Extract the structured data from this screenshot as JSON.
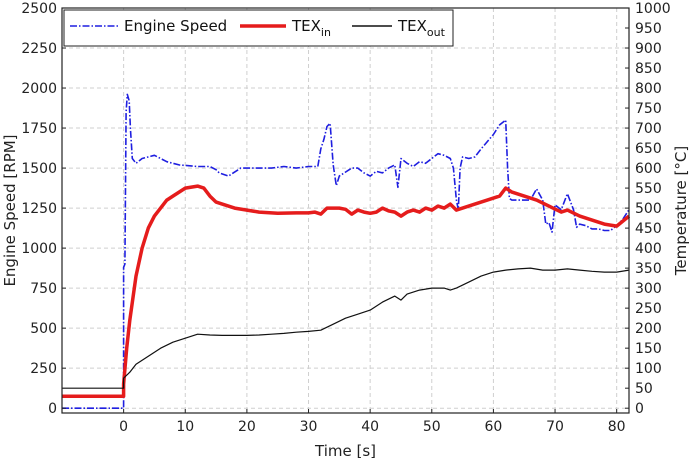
{
  "chart_data": {
    "type": "line",
    "xlabel": "Time [s]",
    "ylabel_left": "Engine Speed [RPM]",
    "ylabel_right": "Temperature [°C]",
    "xlim": [
      -10,
      82
    ],
    "ylim_left": [
      -30,
      2500
    ],
    "ylim_right": [
      -12,
      1000
    ],
    "x_ticks": [
      "0",
      "10",
      "20",
      "30",
      "40",
      "50",
      "60",
      "70",
      "80"
    ],
    "y_left_ticks": [
      "0",
      "250",
      "500",
      "750",
      "1000",
      "1250",
      "1500",
      "1750",
      "2000",
      "2250",
      "2500"
    ],
    "y_right_ticks": [
      "0",
      "50",
      "100",
      "150",
      "200",
      "250",
      "300",
      "350",
      "400",
      "450",
      "500",
      "550",
      "600",
      "650",
      "700",
      "750",
      "800",
      "850",
      "900",
      "950",
      "1000"
    ],
    "grid": true,
    "legend_position": "top-left",
    "legend": [
      {
        "base": "Engine Speed",
        "sub": ""
      },
      {
        "base": "TEX",
        "sub": "in"
      },
      {
        "base": "TEX",
        "sub": "out"
      }
    ],
    "series": [
      {
        "key": "engine_speed",
        "axis": "left",
        "color": "#1f1fe0",
        "style": "dashdot",
        "points": [
          [
            -10,
            0
          ],
          [
            0,
            0
          ],
          [
            0,
            880
          ],
          [
            0.2,
            900
          ],
          [
            0.4,
            1850
          ],
          [
            0.6,
            1960
          ],
          [
            0.9,
            1920
          ],
          [
            1.1,
            1750
          ],
          [
            1.4,
            1560
          ],
          [
            2,
            1530
          ],
          [
            3,
            1560
          ],
          [
            5,
            1580
          ],
          [
            7,
            1540
          ],
          [
            9,
            1520
          ],
          [
            12,
            1510
          ],
          [
            14,
            1510
          ],
          [
            15,
            1490
          ],
          [
            15.5,
            1470
          ],
          [
            17,
            1450
          ],
          [
            19,
            1500
          ],
          [
            22,
            1500
          ],
          [
            24,
            1500
          ],
          [
            26,
            1510
          ],
          [
            28,
            1500
          ],
          [
            30,
            1510
          ],
          [
            31.5,
            1510
          ],
          [
            32,
            1620
          ],
          [
            32.5,
            1680
          ],
          [
            33,
            1760
          ],
          [
            33.5,
            1780
          ],
          [
            34,
            1520
          ],
          [
            34.5,
            1390
          ],
          [
            35,
            1450
          ],
          [
            37,
            1500
          ],
          [
            38,
            1500
          ],
          [
            39,
            1470
          ],
          [
            40,
            1450
          ],
          [
            41,
            1480
          ],
          [
            42,
            1470
          ],
          [
            43,
            1500
          ],
          [
            44,
            1520
          ],
          [
            44.5,
            1380
          ],
          [
            45,
            1560
          ],
          [
            46,
            1530
          ],
          [
            47,
            1510
          ],
          [
            48,
            1540
          ],
          [
            49,
            1530
          ],
          [
            50,
            1560
          ],
          [
            51,
            1590
          ],
          [
            52,
            1580
          ],
          [
            53,
            1560
          ],
          [
            53.5,
            1500
          ],
          [
            54,
            1300
          ],
          [
            54.3,
            1240
          ],
          [
            54.6,
            1500
          ],
          [
            55,
            1570
          ],
          [
            56,
            1560
          ],
          [
            57,
            1570
          ],
          [
            58,
            1620
          ],
          [
            60,
            1710
          ],
          [
            61,
            1770
          ],
          [
            62,
            1800
          ],
          [
            62.3,
            1500
          ],
          [
            62.6,
            1310
          ],
          [
            63,
            1300
          ],
          [
            65,
            1300
          ],
          [
            66,
            1300
          ],
          [
            67,
            1370
          ],
          [
            68,
            1300
          ],
          [
            68.5,
            1150
          ],
          [
            69,
            1160
          ],
          [
            69.5,
            1100
          ],
          [
            70,
            1270
          ],
          [
            71,
            1240
          ],
          [
            72,
            1340
          ],
          [
            73,
            1240
          ],
          [
            73.5,
            1130
          ],
          [
            74,
            1150
          ],
          [
            75,
            1140
          ],
          [
            76,
            1120
          ],
          [
            77,
            1120
          ],
          [
            78,
            1110
          ],
          [
            79,
            1110
          ],
          [
            80,
            1140
          ],
          [
            81,
            1180
          ],
          [
            82,
            1240
          ]
        ]
      },
      {
        "key": "tex_in",
        "axis": "right",
        "color": "#e51c1c",
        "style": "solid",
        "points": [
          [
            -10,
            30
          ],
          [
            0,
            30
          ],
          [
            0,
            60
          ],
          [
            0.5,
            150
          ],
          [
            1,
            220
          ],
          [
            2,
            330
          ],
          [
            3,
            400
          ],
          [
            4,
            450
          ],
          [
            5,
            480
          ],
          [
            6,
            500
          ],
          [
            7,
            520
          ],
          [
            8,
            530
          ],
          [
            9,
            540
          ],
          [
            10,
            550
          ],
          [
            12,
            555
          ],
          [
            13,
            550
          ],
          [
            14,
            530
          ],
          [
            15,
            515
          ],
          [
            16,
            510
          ],
          [
            18,
            500
          ],
          [
            20,
            495
          ],
          [
            22,
            490
          ],
          [
            25,
            487
          ],
          [
            28,
            488
          ],
          [
            30,
            488
          ],
          [
            31,
            490
          ],
          [
            32,
            485
          ],
          [
            33,
            500
          ],
          [
            35,
            500
          ],
          [
            36,
            497
          ],
          [
            37,
            485
          ],
          [
            38,
            495
          ],
          [
            39,
            490
          ],
          [
            40,
            487
          ],
          [
            41,
            490
          ],
          [
            42,
            500
          ],
          [
            43,
            493
          ],
          [
            44,
            490
          ],
          [
            45,
            480
          ],
          [
            46,
            490
          ],
          [
            47,
            495
          ],
          [
            48,
            490
          ],
          [
            49,
            500
          ],
          [
            50,
            495
          ],
          [
            51,
            505
          ],
          [
            52,
            500
          ],
          [
            53,
            510
          ],
          [
            54,
            495
          ],
          [
            55,
            500
          ],
          [
            57,
            510
          ],
          [
            59,
            520
          ],
          [
            61,
            530
          ],
          [
            62,
            550
          ],
          [
            63,
            540
          ],
          [
            65,
            530
          ],
          [
            67,
            520
          ],
          [
            69,
            505
          ],
          [
            71,
            490
          ],
          [
            72,
            495
          ],
          [
            74,
            480
          ],
          [
            76,
            470
          ],
          [
            78,
            460
          ],
          [
            80,
            455
          ],
          [
            82,
            480
          ]
        ]
      },
      {
        "key": "tex_out",
        "axis": "right",
        "color": "#111111",
        "style": "solid",
        "points": [
          [
            -10,
            50
          ],
          [
            0,
            50
          ],
          [
            0,
            75
          ],
          [
            1,
            90
          ],
          [
            2,
            110
          ],
          [
            4,
            130
          ],
          [
            6,
            150
          ],
          [
            8,
            165
          ],
          [
            10,
            175
          ],
          [
            12,
            185
          ],
          [
            14,
            183
          ],
          [
            16,
            182
          ],
          [
            18,
            182
          ],
          [
            20,
            182
          ],
          [
            22,
            183
          ],
          [
            24,
            185
          ],
          [
            26,
            187
          ],
          [
            28,
            190
          ],
          [
            30,
            192
          ],
          [
            32,
            195
          ],
          [
            34,
            210
          ],
          [
            36,
            225
          ],
          [
            38,
            235
          ],
          [
            40,
            245
          ],
          [
            42,
            265
          ],
          [
            44,
            280
          ],
          [
            45,
            270
          ],
          [
            46,
            285
          ],
          [
            48,
            295
          ],
          [
            50,
            300
          ],
          [
            52,
            300
          ],
          [
            53,
            295
          ],
          [
            54,
            300
          ],
          [
            56,
            315
          ],
          [
            58,
            330
          ],
          [
            60,
            340
          ],
          [
            62,
            345
          ],
          [
            64,
            348
          ],
          [
            66,
            350
          ],
          [
            68,
            345
          ],
          [
            70,
            345
          ],
          [
            72,
            348
          ],
          [
            74,
            345
          ],
          [
            76,
            342
          ],
          [
            78,
            340
          ],
          [
            80,
            340
          ],
          [
            82,
            345
          ]
        ]
      }
    ]
  }
}
